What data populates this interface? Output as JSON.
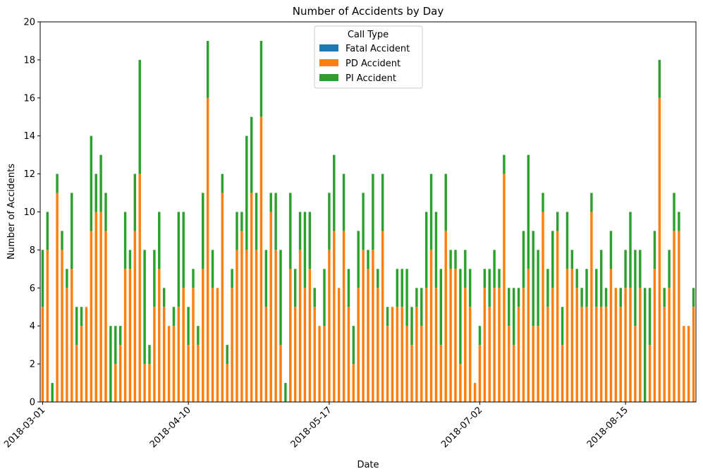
{
  "chart_data": {
    "type": "bar",
    "stacked": true,
    "title": "Number of Accidents by Day",
    "xlabel": "Date",
    "ylabel": "Number of Accidents",
    "ylim": [
      0,
      20
    ],
    "yticks": [
      0,
      2,
      4,
      6,
      8,
      10,
      12,
      14,
      16,
      18,
      20
    ],
    "grid": false,
    "xtick_labels": [
      {
        "index": 0,
        "label": "2018-03-01"
      },
      {
        "index": 30,
        "label": "2018-04-10"
      },
      {
        "index": 59,
        "label": "2018-05-17"
      },
      {
        "index": 90,
        "label": "2018-07-02"
      },
      {
        "index": 120,
        "label": "2018-08-15"
      }
    ],
    "legend": {
      "title": "Call Type",
      "placement": "top-center"
    },
    "series": [
      {
        "name": "Fatal Accident",
        "color": "#1f77b4",
        "values": [
          0,
          0,
          0,
          0,
          0,
          0,
          0,
          0,
          0,
          0,
          0,
          0,
          0,
          0,
          0,
          0,
          0,
          0,
          0,
          0,
          0,
          0,
          0,
          0,
          0,
          0,
          0,
          0,
          0,
          0,
          0,
          0,
          0,
          0,
          0,
          0,
          0,
          0,
          0,
          0,
          0,
          0,
          0,
          0,
          0,
          0,
          0,
          0,
          0,
          0,
          0,
          0,
          0,
          0,
          0,
          0,
          0,
          0,
          0,
          0,
          0,
          0,
          0,
          0,
          0,
          0,
          0,
          0,
          0,
          0,
          0,
          0,
          0,
          0,
          0,
          0,
          0,
          0,
          0,
          0,
          0,
          0,
          0,
          0,
          0,
          0,
          0,
          0,
          0,
          0,
          0,
          0,
          0,
          0,
          0,
          0,
          0,
          0,
          0,
          0,
          0,
          0,
          0,
          0,
          0,
          0,
          0,
          0,
          0,
          0,
          0,
          0,
          0,
          0,
          0,
          0,
          0,
          0,
          0,
          0,
          0,
          0,
          0,
          0,
          0,
          0,
          0,
          0,
          0,
          0,
          0,
          0,
          0,
          0,
          0
        ]
      },
      {
        "name": "PD Accident",
        "color": "#ff7f0e",
        "values": [
          5,
          8,
          0,
          11,
          8,
          6,
          7,
          3,
          4,
          5,
          9,
          10,
          10,
          9,
          0,
          2,
          3,
          7,
          7,
          9,
          12,
          2,
          2,
          5,
          7,
          5,
          4,
          4,
          5,
          6,
          3,
          6,
          3,
          7,
          16,
          6,
          6,
          11,
          2,
          6,
          8,
          9,
          8,
          11,
          8,
          15,
          5,
          10,
          8,
          3,
          0,
          7,
          5,
          8,
          6,
          7,
          5,
          4,
          4,
          8,
          9,
          6,
          9,
          5,
          2,
          6,
          8,
          7,
          8,
          6,
          9,
          4,
          5,
          5,
          5,
          4,
          3,
          5,
          4,
          6,
          8,
          6,
          3,
          9,
          7,
          7,
          2,
          6,
          5,
          1,
          3,
          6,
          5,
          6,
          6,
          12,
          4,
          3,
          5,
          6,
          7,
          4,
          4,
          10,
          5,
          6,
          9,
          3,
          7,
          7,
          6,
          5,
          5,
          10,
          5,
          5,
          5,
          7,
          6,
          5,
          6,
          6,
          4,
          6,
          0,
          3,
          7,
          16,
          5,
          6,
          9,
          9,
          4,
          4,
          5
        ]
      },
      {
        "name": "PI Accident",
        "color": "#2ca02c",
        "values": [
          3,
          2,
          1,
          1,
          1,
          1,
          4,
          2,
          1,
          0,
          5,
          2,
          3,
          2,
          4,
          2,
          1,
          3,
          1,
          3,
          6,
          6,
          1,
          3,
          3,
          1,
          0,
          1,
          5,
          4,
          2,
          1,
          1,
          4,
          3,
          2,
          0,
          1,
          1,
          1,
          2,
          1,
          6,
          4,
          3,
          4,
          3,
          1,
          3,
          5,
          1,
          4,
          2,
          2,
          4,
          3,
          1,
          0,
          3,
          3,
          4,
          0,
          3,
          2,
          2,
          3,
          3,
          1,
          4,
          1,
          3,
          1,
          0,
          2,
          2,
          3,
          2,
          1,
          2,
          4,
          4,
          4,
          4,
          3,
          1,
          1,
          5,
          2,
          2,
          0,
          1,
          1,
          2,
          2,
          1,
          1,
          2,
          3,
          1,
          3,
          6,
          5,
          4,
          1,
          2,
          3,
          1,
          2,
          3,
          1,
          1,
          1,
          2,
          1,
          2,
          3,
          1,
          2,
          0,
          1,
          2,
          4,
          4,
          2,
          6,
          3,
          2,
          2,
          1,
          2,
          2,
          1,
          0,
          0,
          1
        ]
      }
    ]
  }
}
